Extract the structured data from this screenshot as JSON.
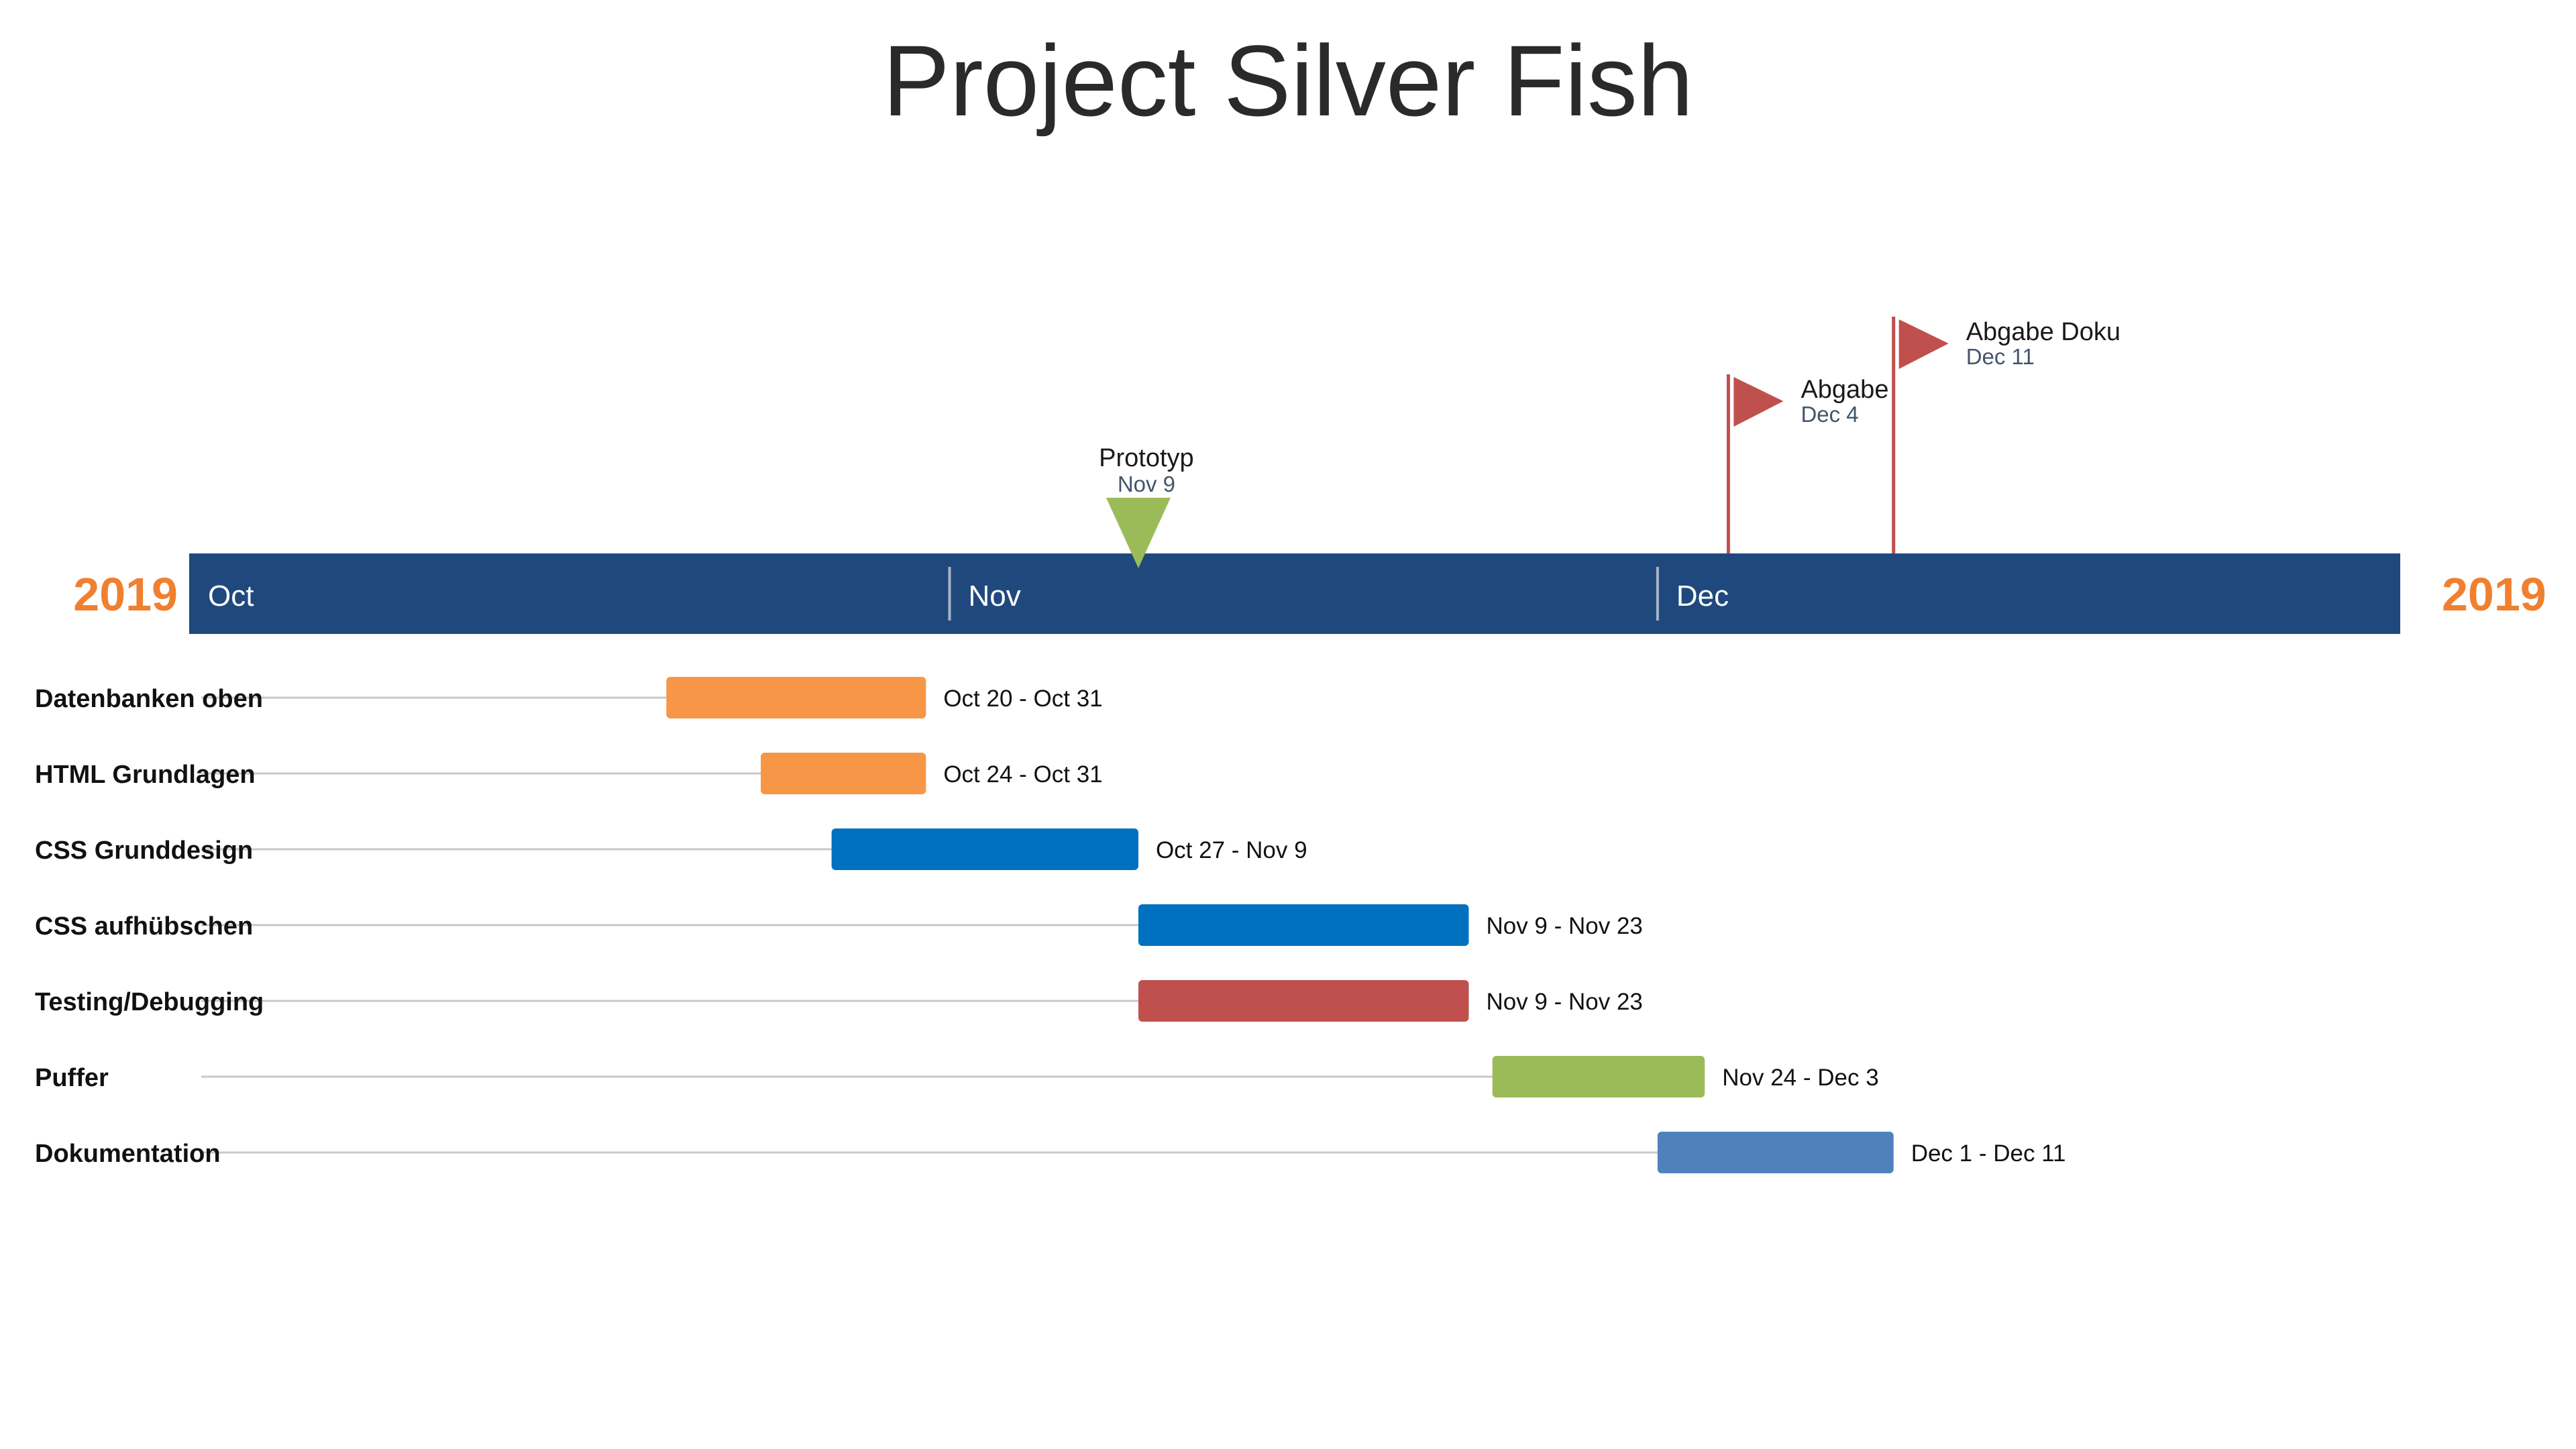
{
  "title": "Project Silver Fish",
  "year_left": "2019",
  "year_right": "2019",
  "colors": {
    "axis_bar": "#1f497d",
    "year": "#f08030",
    "month_label": "#ffffff",
    "flag": "#c0504d",
    "milestone_date": "#44546a",
    "row_line": "#c8c8c8"
  },
  "chart_data": {
    "type": "gantt",
    "title": "Project Silver Fish",
    "x_range": [
      "2019-10-01",
      "2019-12-31"
    ],
    "months": [
      {
        "label": "Oct",
        "start": "2019-10-01"
      },
      {
        "label": "Nov",
        "start": "2019-11-01"
      },
      {
        "label": "Dec",
        "start": "2019-12-01"
      }
    ],
    "milestones": [
      {
        "name": "Prototyp",
        "date_label": "Nov 9",
        "date": "2019-11-09",
        "shape": "triangle-down",
        "color": "#9bbb59"
      },
      {
        "name": "Abgabe",
        "date_label": "Dec 4",
        "date": "2019-12-04",
        "shape": "flag",
        "color": "#c0504d"
      },
      {
        "name": "Abgabe Doku",
        "date_label": "Dec 11",
        "date": "2019-12-11",
        "shape": "flag",
        "color": "#c0504d"
      }
    ],
    "tasks": [
      {
        "name": "Datenbanken oben",
        "start": "2019-10-20",
        "end": "2019-10-31",
        "label": "Oct 20 - Oct 31",
        "color": "#f79646"
      },
      {
        "name": "HTML Grundlagen",
        "start": "2019-10-24",
        "end": "2019-10-31",
        "label": "Oct 24 - Oct 31",
        "color": "#f79646"
      },
      {
        "name": "CSS Grunddesign",
        "start": "2019-10-27",
        "end": "2019-11-09",
        "label": "Oct 27 - Nov 9",
        "color": "#0070c0"
      },
      {
        "name": "CSS aufhübschen",
        "start": "2019-11-09",
        "end": "2019-11-23",
        "label": "Nov 9 - Nov 23",
        "color": "#0070c0"
      },
      {
        "name": "Testing/Debugging",
        "start": "2019-11-09",
        "end": "2019-11-23",
        "label": "Nov 9 - Nov 23",
        "color": "#c0504d"
      },
      {
        "name": "Puffer",
        "start": "2019-11-24",
        "end": "2019-12-03",
        "label": "Nov 24 - Dec 3",
        "color": "#9bbb59"
      },
      {
        "name": "Dokumentation",
        "start": "2019-12-01",
        "end": "2019-12-11",
        "label": "Dec 1 - Dec 11",
        "color": "#4f81bd"
      }
    ]
  }
}
